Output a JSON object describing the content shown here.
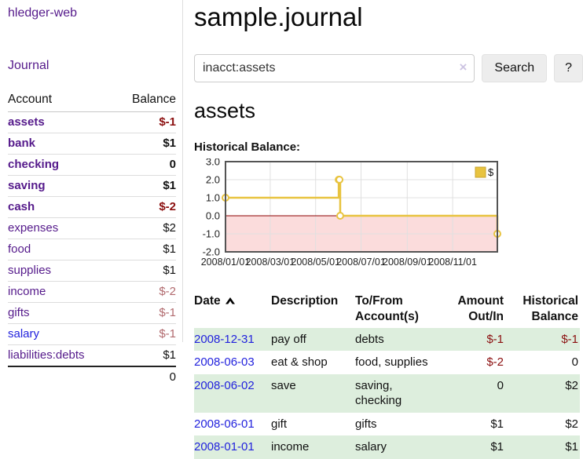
{
  "colors": {
    "link_visited_purple": "#551a8b",
    "link_blue": "#2222dd",
    "negative_strong": "#8b0f0f",
    "negative_muted": "#b16a6e",
    "row_green": "#ddeedd",
    "series_gold": "#e8c33f",
    "series_gold_border": "#c9a42e",
    "negative_region_pink": "#fbdcdc",
    "zero_line_red": "#8b0000",
    "grid_gray": "#e0e0e0",
    "plot_border": "#545454"
  },
  "sidebar": {
    "brand": "hledger-web",
    "journal_label": "Journal",
    "accounts": {
      "headers": {
        "account": "Account",
        "balance": "Balance"
      },
      "rows": [
        {
          "name": "assets",
          "balance": "$-1",
          "depth": 1,
          "bold": true,
          "link": "purple",
          "balance_class": "neg"
        },
        {
          "name": "bank",
          "balance": "$1",
          "depth": 2,
          "bold": true,
          "link": "purple",
          "balance_class": ""
        },
        {
          "name": "checking",
          "balance": "0",
          "depth": 3,
          "bold": true,
          "link": "purple",
          "balance_class": ""
        },
        {
          "name": "saving",
          "balance": "$1",
          "depth": 3,
          "bold": true,
          "link": "purple",
          "balance_class": ""
        },
        {
          "name": "cash",
          "balance": "$-2",
          "depth": 2,
          "bold": true,
          "link": "purple",
          "balance_class": "neg"
        },
        {
          "name": "expenses",
          "balance": "$2",
          "depth": 1,
          "bold": false,
          "link": "purple",
          "balance_class": ""
        },
        {
          "name": "food",
          "balance": "$1",
          "depth": 2,
          "bold": false,
          "link": "purple",
          "balance_class": ""
        },
        {
          "name": "supplies",
          "balance": "$1",
          "depth": 2,
          "bold": false,
          "link": "purple",
          "balance_class": ""
        },
        {
          "name": "income",
          "balance": "$-2",
          "depth": 1,
          "bold": false,
          "link": "purple",
          "balance_class": "negmuted"
        },
        {
          "name": "gifts",
          "balance": "$-1",
          "depth": 2,
          "bold": false,
          "link": "purple",
          "balance_class": "negmuted"
        },
        {
          "name": "salary",
          "balance": "$-1",
          "depth": 2,
          "bold": false,
          "link": "blue",
          "balance_class": "negmuted"
        },
        {
          "name": "liabilities:debts",
          "balance": "$1",
          "depth": 1,
          "bold": false,
          "link": "purple",
          "balance_class": ""
        }
      ],
      "total": "0"
    }
  },
  "main": {
    "title": "sample.journal",
    "search": {
      "value": "inacct:assets",
      "clear_icon": "×",
      "search_button": "Search",
      "help_button": "?"
    },
    "account_heading": "assets",
    "chart_title": "Historical Balance:"
  },
  "chart_data": {
    "type": "line",
    "style": "step",
    "title": "Historical Balance:",
    "xlim": [
      "2008-01-01",
      "2008-12-31"
    ],
    "ylim": [
      -2,
      3
    ],
    "x_ticks": [
      "2008/01/01",
      "2008/03/01",
      "2008/05/01",
      "2008/07/01",
      "2008/09/01",
      "2008/11/01"
    ],
    "y_ticks": [
      3.0,
      2.0,
      1.0,
      0.0,
      -1.0,
      -2.0
    ],
    "grid": true,
    "legend": {
      "label": "$",
      "position": "top-right"
    },
    "series": [
      {
        "name": "$",
        "points": [
          [
            "2008-01-01",
            1
          ],
          [
            "2008-06-01",
            2
          ],
          [
            "2008-06-02",
            2
          ],
          [
            "2008-06-03",
            0
          ],
          [
            "2008-12-31",
            -1
          ]
        ]
      }
    ]
  },
  "register": {
    "headers": {
      "date": "Date",
      "description": "Description",
      "accounts": "To/From Account(s)",
      "amount": "Amount Out/In",
      "balance": "Historical Balance"
    },
    "rows": [
      {
        "date": "2008-12-31",
        "description": "pay off",
        "accounts": "debts",
        "amount": "$-1",
        "amount_class": "neg",
        "balance": "$-1",
        "balance_class": "neg"
      },
      {
        "date": "2008-06-03",
        "description": "eat & shop",
        "accounts": "food, supplies",
        "amount": "$-2",
        "amount_class": "neg",
        "balance": "0",
        "balance_class": ""
      },
      {
        "date": "2008-06-02",
        "description": "save",
        "accounts": "saving, checking",
        "amount": "0",
        "amount_class": "",
        "balance": "$2",
        "balance_class": ""
      },
      {
        "date": "2008-06-01",
        "description": "gift",
        "accounts": "gifts",
        "amount": "$1",
        "amount_class": "",
        "balance": "$2",
        "balance_class": ""
      },
      {
        "date": "2008-01-01",
        "description": "income",
        "accounts": "salary",
        "amount": "$1",
        "amount_class": "",
        "balance": "$1",
        "balance_class": ""
      }
    ]
  }
}
